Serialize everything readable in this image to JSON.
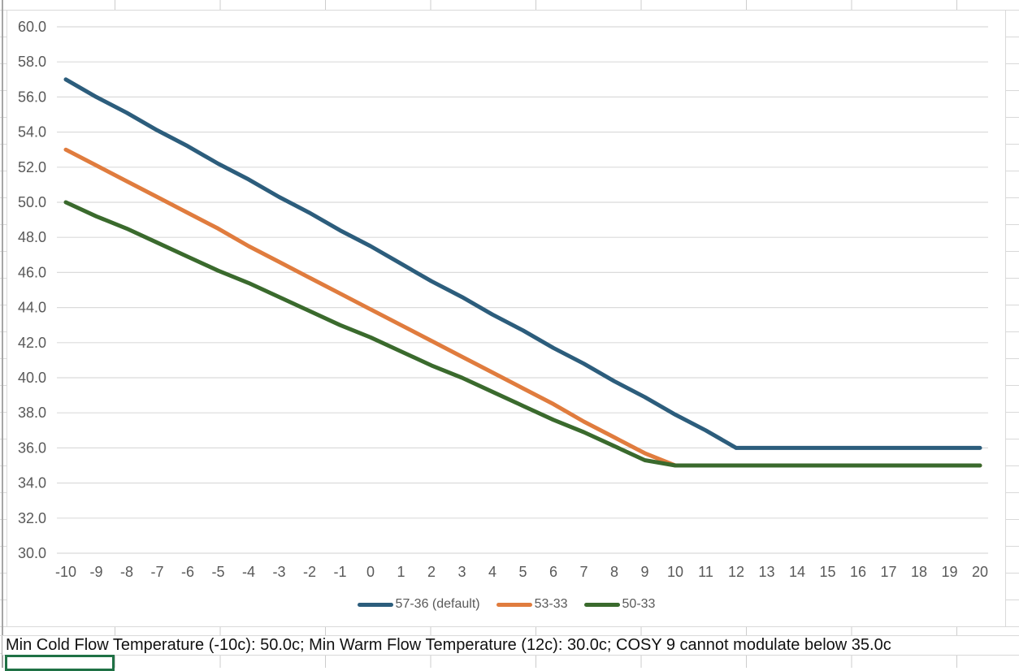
{
  "status_row": {
    "text": "Min Cold Flow Temperature (-10c): 50.0c; Min Warm Flow Temperature (12c): 30.0c; COSY 9 cannot modulate below 35.0c"
  },
  "chart_data": {
    "type": "line",
    "title": "",
    "xlabel": "",
    "ylabel": "",
    "x": [
      -10,
      -9,
      -8,
      -7,
      -6,
      -5,
      -4,
      -3,
      -2,
      -1,
      0,
      1,
      2,
      3,
      4,
      5,
      6,
      7,
      8,
      9,
      10,
      11,
      12,
      13,
      14,
      15,
      16,
      17,
      18,
      19,
      20
    ],
    "series": [
      {
        "name": "57-36 (default)",
        "color": "#2C5D7C",
        "values": [
          57.0,
          56.0,
          55.1,
          54.1,
          53.2,
          52.2,
          51.3,
          50.3,
          49.4,
          48.4,
          47.5,
          46.5,
          45.5,
          44.6,
          43.6,
          42.7,
          41.7,
          40.8,
          39.8,
          38.9,
          37.9,
          37.0,
          36.0,
          36.0,
          36.0,
          36.0,
          36.0,
          36.0,
          36.0,
          36.0,
          36.0
        ]
      },
      {
        "name": "53-33",
        "color": "#E07C3E",
        "values": [
          53.0,
          52.1,
          51.2,
          50.3,
          49.4,
          48.5,
          47.5,
          46.6,
          45.7,
          44.8,
          43.9,
          43.0,
          42.1,
          41.2,
          40.3,
          39.4,
          38.5,
          37.5,
          36.6,
          35.7,
          35.0,
          35.0,
          35.0,
          35.0,
          35.0,
          35.0,
          35.0,
          35.0,
          35.0,
          35.0,
          35.0
        ]
      },
      {
        "name": "50-33",
        "color": "#3A6A2D",
        "values": [
          50.0,
          49.2,
          48.5,
          47.7,
          46.9,
          46.1,
          45.4,
          44.6,
          43.8,
          43.0,
          42.3,
          41.5,
          40.7,
          40.0,
          39.2,
          38.4,
          37.6,
          36.9,
          36.1,
          35.3,
          35.0,
          35.0,
          35.0,
          35.0,
          35.0,
          35.0,
          35.0,
          35.0,
          35.0,
          35.0,
          35.0
        ]
      }
    ],
    "ylim": [
      30,
      60
    ],
    "ytick_step": 2,
    "ytick_decimals": 1,
    "grid": "horizontal-only",
    "legend_position": "bottom"
  },
  "colors": {
    "gridline": "#DBDBDB",
    "axis_label": "#595959",
    "chart_border": "#D9D9D9",
    "cell_border": "#D9D9D9",
    "selection_border": "#1F7145",
    "sheet_edge": "#A6A6A6"
  }
}
